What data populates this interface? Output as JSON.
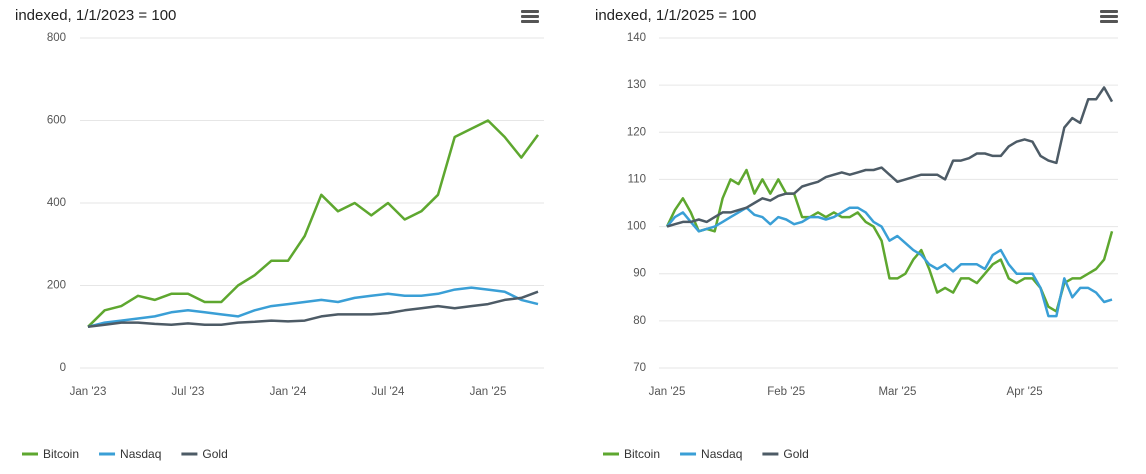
{
  "chart_data": [
    {
      "type": "line",
      "title": "indexed, 1/1/2023 = 100",
      "categories": [
        "Jan '23",
        null,
        null,
        null,
        null,
        null,
        "Jul '23",
        null,
        null,
        null,
        null,
        null,
        "Jan '24",
        null,
        null,
        null,
        null,
        null,
        "Jul '24",
        null,
        null,
        null,
        null,
        null,
        "Jan '25",
        null,
        null,
        null
      ],
      "series": [
        {
          "name": "Bitcoin",
          "color": "#5ea72f",
          "values": [
            100,
            140,
            150,
            175,
            165,
            180,
            180,
            160,
            160,
            200,
            225,
            260,
            260,
            320,
            420,
            380,
            400,
            370,
            400,
            360,
            380,
            420,
            560,
            580,
            600,
            560,
            510,
            565
          ]
        },
        {
          "name": "Nasdaq",
          "color": "#3a9fd6",
          "values": [
            100,
            110,
            115,
            120,
            125,
            135,
            140,
            135,
            130,
            125,
            140,
            150,
            155,
            160,
            165,
            160,
            170,
            175,
            180,
            175,
            175,
            180,
            190,
            195,
            190,
            185,
            165,
            155
          ]
        },
        {
          "name": "Gold",
          "color": "#4d5b66",
          "values": [
            100,
            105,
            110,
            110,
            107,
            105,
            108,
            105,
            105,
            110,
            112,
            115,
            113,
            115,
            125,
            130,
            130,
            130,
            133,
            140,
            145,
            150,
            145,
            150,
            155,
            165,
            170,
            185
          ]
        }
      ],
      "ylim": [
        0,
        800
      ],
      "yticks": [
        0,
        200,
        400,
        600,
        800
      ],
      "grid": true
    },
    {
      "type": "line",
      "title": "indexed, 1/1/2025 = 100",
      "categories": [
        "Jan '25",
        null,
        null,
        null,
        null,
        null,
        null,
        null,
        null,
        null,
        null,
        null,
        null,
        null,
        null,
        "Feb '25",
        null,
        null,
        null,
        null,
        null,
        null,
        null,
        null,
        null,
        null,
        null,
        null,
        null,
        "Mar '25",
        null,
        null,
        null,
        null,
        null,
        null,
        null,
        null,
        null,
        null,
        null,
        null,
        null,
        null,
        null,
        "Apr '25",
        null,
        null,
        null,
        null,
        null,
        null,
        null,
        null,
        null,
        null,
        null
      ],
      "series": [
        {
          "name": "Bitcoin",
          "color": "#5ea72f",
          "values": [
            100,
            103.5,
            106,
            103,
            99,
            99.5,
            99,
            106,
            110,
            109,
            112,
            107,
            110,
            107,
            110,
            107,
            107,
            102,
            102,
            103,
            102,
            103,
            102,
            102,
            103,
            101,
            100,
            97,
            89,
            89,
            90,
            93,
            95,
            91,
            86,
            87,
            86,
            89,
            89,
            88,
            90,
            92,
            93,
            89,
            88,
            89,
            89,
            87,
            83,
            82,
            88,
            89,
            89,
            90,
            91,
            93,
            99
          ]
        },
        {
          "name": "Nasdaq",
          "color": "#3a9fd6",
          "values": [
            100,
            102,
            103,
            101,
            99,
            99.5,
            100,
            101,
            102,
            103,
            104,
            102.5,
            102,
            100.5,
            102,
            101.5,
            100.5,
            101,
            102,
            102,
            101.5,
            102,
            103,
            104,
            104,
            103,
            101,
            100,
            97,
            98,
            96.5,
            95,
            94,
            92,
            91,
            92,
            90.5,
            92,
            92,
            92,
            91,
            94,
            95,
            92,
            90,
            90,
            90,
            87,
            81,
            81,
            89,
            85,
            87,
            87,
            86,
            84,
            84.5
          ]
        },
        {
          "name": "Gold",
          "color": "#4d5b66",
          "values": [
            100,
            100.5,
            101,
            101,
            101.5,
            101,
            102,
            103,
            103,
            103.5,
            104,
            105,
            106,
            105.5,
            106.5,
            107,
            107,
            108.5,
            109,
            109.5,
            110.5,
            111,
            111.5,
            111,
            111.5,
            112,
            112,
            112.5,
            111,
            109.5,
            110,
            110.5,
            111,
            111,
            111,
            110,
            114,
            114,
            114.5,
            115.5,
            115.5,
            115,
            115,
            117,
            118,
            118.5,
            118,
            115,
            114,
            113.5,
            121,
            123,
            122,
            127,
            127,
            129.5,
            126.5
          ]
        }
      ],
      "ylim": [
        70,
        140
      ],
      "yticks": [
        70,
        80,
        90,
        100,
        110,
        120,
        130,
        140
      ],
      "grid": true
    }
  ]
}
